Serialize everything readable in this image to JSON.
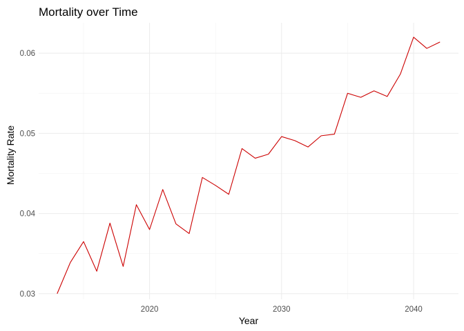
{
  "chart_data": {
    "type": "line",
    "title": "Mortality over Time",
    "xlabel": "Year",
    "ylabel": "Mortality Rate",
    "xlim": [
      2011.6,
      2043.4
    ],
    "ylim": [
      0.0293,
      0.0638
    ],
    "x_ticks": [
      2020,
      2030,
      2040
    ],
    "x_tick_labels": [
      "2020",
      "2030",
      "2040"
    ],
    "x_minor_ticks": [
      2015,
      2025,
      2035
    ],
    "y_ticks": [
      0.03,
      0.04,
      0.05,
      0.06
    ],
    "y_tick_labels": [
      "0.03",
      "0.04",
      "0.05",
      "0.06"
    ],
    "y_minor_ticks": [
      0.035,
      0.045,
      0.055
    ],
    "grid": true,
    "series": [
      {
        "color": "#cc0000",
        "x": [
          2013,
          2014,
          2015,
          2016,
          2017,
          2018,
          2019,
          2020,
          2021,
          2022,
          2023,
          2024,
          2025,
          2026,
          2027,
          2028,
          2029,
          2030,
          2031,
          2032,
          2033,
          2034,
          2035,
          2036,
          2037,
          2038,
          2039,
          2040,
          2041,
          2042
        ],
        "values": [
          0.03,
          0.0339,
          0.0365,
          0.0328,
          0.0388,
          0.0334,
          0.0411,
          0.038,
          0.043,
          0.0387,
          0.0375,
          0.0445,
          0.0435,
          0.0424,
          0.0481,
          0.0469,
          0.0474,
          0.0496,
          0.0491,
          0.0483,
          0.0497,
          0.0499,
          0.055,
          0.0545,
          0.0553,
          0.0546,
          0.0574,
          0.062,
          0.0606,
          0.0614
        ]
      }
    ]
  }
}
